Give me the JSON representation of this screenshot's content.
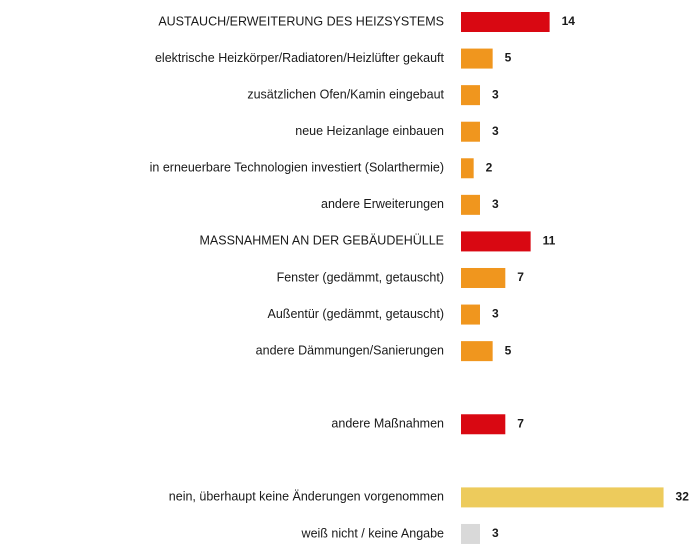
{
  "chart_data": {
    "type": "bar",
    "orientation": "horizontal",
    "categories": [
      "AUSTAUCH/ERWEITERUNG  DES HEIZSYSTEMS",
      "elektrische Heizkörper/Radiatoren/Heizlüfter  gekauft",
      "zusätzlichen Ofen/Kamin eingebaut",
      "neue Heizanlage einbauen",
      "in erneuerbare Technologien investiert (Solarthermie)",
      "andere Erweiterungen",
      "MASSNAHMEN  AN DER GEBÄUDEHÜLLE",
      "Fenster (gedämmt, getauscht)",
      "Außentür (gedämmt, getauscht)",
      "andere Dämmungen/Sanierungen",
      null,
      "andere Maßnahmen",
      null,
      "nein, überhaupt keine Änderungen vorgenommen",
      "weiß nicht / keine Angabe"
    ],
    "values": [
      14,
      5,
      3,
      3,
      2,
      3,
      11,
      7,
      3,
      5,
      null,
      7,
      null,
      32,
      3
    ],
    "colors": [
      "#d90812",
      "#f0961e",
      "#f0961e",
      "#f0961e",
      "#f0961e",
      "#f0961e",
      "#d90812",
      "#f0961e",
      "#f0961e",
      "#f0961e",
      null,
      "#d90812",
      null,
      "#edcb5c",
      "#d9d9d9"
    ]
  }
}
